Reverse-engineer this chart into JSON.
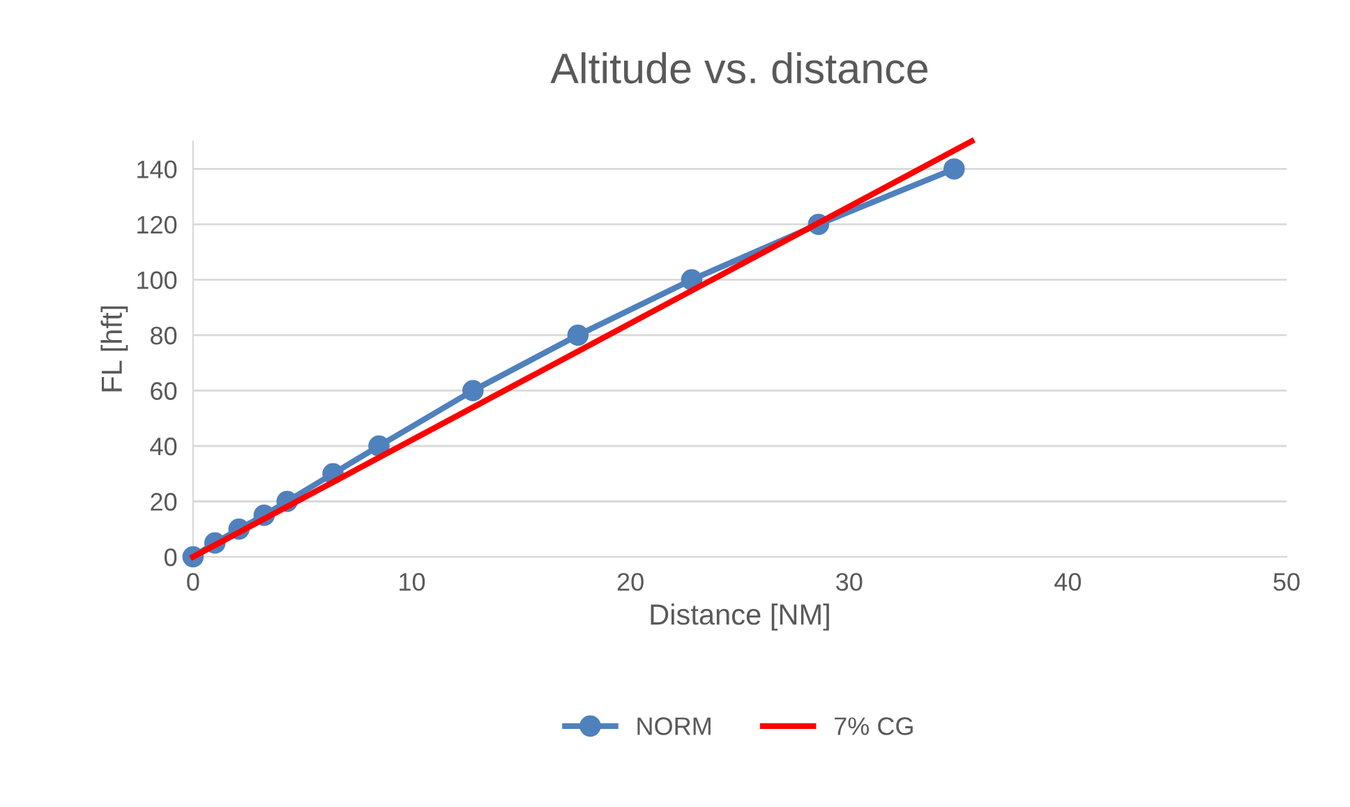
{
  "chart_data": {
    "type": "line",
    "title": "Altitude vs. distance",
    "xlabel": "Distance [NM]",
    "ylabel": "FL [hft]",
    "xlim": [
      0,
      50
    ],
    "xticks": [
      0,
      10,
      20,
      30,
      40,
      50
    ],
    "ylim": [
      0,
      150
    ],
    "yticks": [
      0,
      20,
      40,
      60,
      80,
      100,
      120,
      140
    ],
    "grid": "y",
    "legend": "bottom",
    "line_style": "solid",
    "series": [
      {
        "name": "NORM",
        "color": "#4f81bd",
        "marker": "circle",
        "x": [
          0,
          1.0,
          2.1,
          3.25,
          4.3,
          6.4,
          8.5,
          12.8,
          17.6,
          22.8,
          28.6,
          34.8
        ],
        "values": [
          0,
          5,
          10,
          15,
          20,
          30,
          40,
          60,
          80,
          100,
          120,
          140
        ]
      },
      {
        "name": "7% CG",
        "color": "#ff0000",
        "marker": "none",
        "x": [
          0,
          35.6
        ],
        "values": [
          0,
          150
        ]
      }
    ]
  }
}
